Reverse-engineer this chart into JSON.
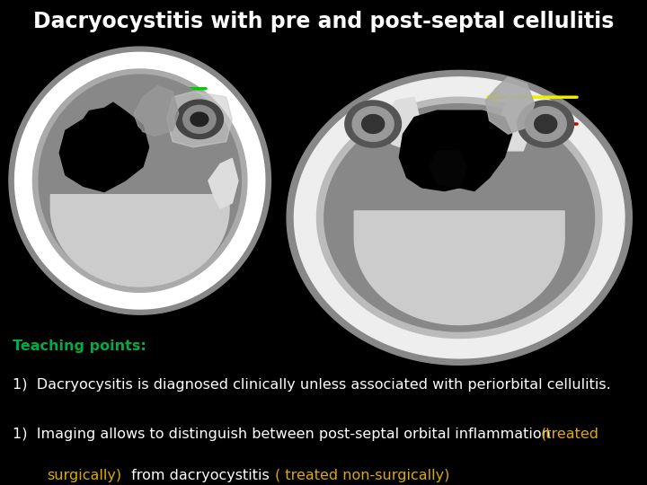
{
  "title": "Dacryocystitis with pre and post-septal cellulitis",
  "title_bg": "#1a2d6b",
  "title_color": "#ffffff",
  "bg_color": "#000000",
  "teaching_points_label": "Teaching points:",
  "teaching_points_color": "#00aa44",
  "point1": "Dacryocysitis is diagnosed clinically unless associated with periorbital cellulitis.",
  "text_color": "#ffffff",
  "orange_color": "#ddaa00",
  "arrow1_color": "#00cc00",
  "arrow2_color": "#eeee00",
  "arrow3_color": "#cc0000",
  "title_fontsize": 17,
  "body_fontsize": 11.5,
  "teaching_fontsize": 11.5
}
